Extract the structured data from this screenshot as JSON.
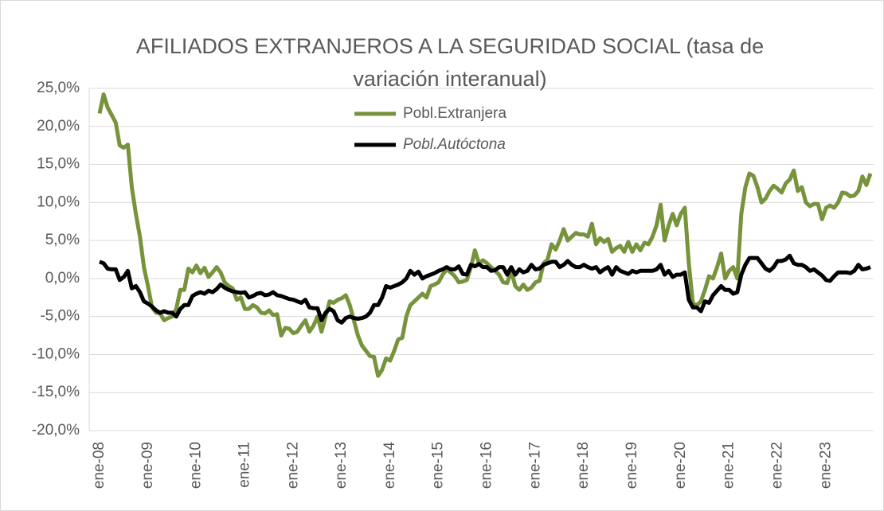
{
  "chart_data": {
    "type": "line",
    "title": "AFILIADOS EXTRANJEROS A LA SEGURIDAD SOCIAL (tasa de variación interanual)",
    "categories": [
      "ene-08",
      null,
      null,
      null,
      null,
      null,
      null,
      null,
      null,
      null,
      null,
      null,
      "ene-09",
      null,
      null,
      null,
      null,
      null,
      null,
      null,
      null,
      null,
      null,
      null,
      "ene-10",
      null,
      null,
      null,
      null,
      null,
      null,
      null,
      null,
      null,
      null,
      null,
      "ene-11",
      null,
      null,
      null,
      null,
      null,
      null,
      null,
      null,
      null,
      null,
      null,
      "ene-12",
      null,
      null,
      null,
      null,
      null,
      null,
      null,
      null,
      null,
      null,
      null,
      "ene-13",
      null,
      null,
      null,
      null,
      null,
      null,
      null,
      null,
      null,
      null,
      null,
      "ene-14",
      null,
      null,
      null,
      null,
      null,
      null,
      null,
      null,
      null,
      null,
      null,
      "ene-15",
      null,
      null,
      null,
      null,
      null,
      null,
      null,
      null,
      null,
      null,
      null,
      "ene-16",
      null,
      null,
      null,
      null,
      null,
      null,
      null,
      null,
      null,
      null,
      null,
      "ene-17",
      null,
      null,
      null,
      null,
      null,
      null,
      null,
      null,
      null,
      null,
      null,
      "ene-18",
      null,
      null,
      null,
      null,
      null,
      null,
      null,
      null,
      null,
      null,
      null,
      "ene-19",
      null,
      null,
      null,
      null,
      null,
      null,
      null,
      null,
      null,
      null,
      null,
      "ene-20",
      null,
      null,
      null,
      null,
      null,
      null,
      null,
      null,
      null,
      null,
      null,
      "ene-21",
      null,
      null,
      null,
      null,
      null,
      null,
      null,
      null,
      null,
      null,
      null,
      "ene-22",
      null,
      null,
      null,
      null,
      null,
      null,
      null,
      null,
      null,
      null,
      null,
      "ene-23",
      null,
      null,
      null,
      null,
      null,
      null,
      null,
      null,
      null,
      null,
      null
    ],
    "series": [
      {
        "name": "Pobl.Extranjera",
        "color": "#77933c",
        "values": [
          21.7,
          24.2,
          22.5,
          21.5,
          20.5,
          17.5,
          17.2,
          17.6,
          12,
          8.5,
          5.5,
          1.5,
          -1,
          -3.8,
          -4.5,
          -4.6,
          -5.5,
          -5.2,
          -5.0,
          -4,
          -1.5,
          -1.5,
          1.3,
          0.8,
          1.7,
          0.7,
          1.4,
          0.2,
          0.8,
          1.5,
          0.8,
          -0.5,
          -1,
          -1.3,
          -2.8,
          -2.5,
          -4,
          -4,
          -3.5,
          -3.8,
          -4.5,
          -4.6,
          -4.2,
          -4.8,
          -4.7,
          -7.5,
          -6.5,
          -6.6,
          -7.2,
          -7,
          -6.2,
          -5.5,
          -7,
          -6.2,
          -5,
          -7,
          -5,
          -3,
          -3.2,
          -2.8,
          -2.6,
          -2.2,
          -3.5,
          -5.5,
          -7.5,
          -8.8,
          -9.5,
          -10.2,
          -10.3,
          -12.8,
          -12,
          -10.5,
          -10.8,
          -9.5,
          -8,
          -7.8,
          -5,
          -3.5,
          -3,
          -2.5,
          -2,
          -2.5,
          -1,
          -0.8,
          -0.5,
          0.5,
          1.2,
          0.8,
          0.3,
          -0.5,
          -0.4,
          -0.2,
          1.5,
          3.7,
          2,
          2.4,
          2,
          1.5,
          1,
          0.5,
          -0.5,
          -0.6,
          1,
          -1,
          -1.5,
          -0.8,
          -1.5,
          -1.2,
          -0.5,
          -0.3,
          2,
          2.5,
          4.5,
          3.8,
          5,
          6.5,
          5,
          5.5,
          6,
          5.8,
          5.8,
          5.5,
          7.2,
          4.5,
          5.3,
          4.8,
          5.2,
          3.5,
          4,
          4.3,
          3.5,
          4.8,
          3.5,
          4.5,
          3.7,
          4.7,
          4.5,
          5.5,
          7,
          9.7,
          5,
          7,
          8.5,
          7,
          8.5,
          9.3,
          2,
          -3.3,
          -3.5,
          -3,
          -1.5,
          0.3,
          0,
          1.5,
          3.3,
          0,
          1,
          1.5,
          0,
          8.5,
          12,
          13.8,
          13.5,
          12,
          10,
          10.5,
          11.5,
          12.2,
          11.8,
          11.3,
          12.5,
          13,
          14.2,
          11.5,
          12,
          10,
          9.5,
          9.8,
          9.8,
          7.8,
          9.3,
          9.6,
          9.3,
          10,
          11.3,
          11.2,
          10.8,
          10.9,
          11.5,
          13.4,
          12.3,
          13.8
        ]
      },
      {
        "name": "Pobl.Autóctona",
        "color": "#000000",
        "values": [
          2.2,
          2,
          1.3,
          1.2,
          1.2,
          -0.2,
          0.2,
          1,
          -1.3,
          -1,
          -1.8,
          -3,
          -3.3,
          -3.7,
          -4.2,
          -4.5,
          -4.3,
          -4.5,
          -4.5,
          -5,
          -4,
          -3.5,
          -3.5,
          -2.3,
          -2,
          -1.8,
          -2,
          -1.6,
          -1.8,
          -1.4,
          -0.8,
          -1.2,
          -1.5,
          -1.7,
          -1.8,
          -1.9,
          -1.8,
          -2.5,
          -2.3,
          -2,
          -1.9,
          -2.2,
          -2.1,
          -1.8,
          -2.2,
          -2.3,
          -2.5,
          -2.7,
          -2.8,
          -3,
          -3.2,
          -2.8,
          -3.8,
          -3.9,
          -3.9,
          -5.5,
          -4.5,
          -4,
          -4.3,
          -5.5,
          -5.8,
          -5.2,
          -5,
          -5.2,
          -5.3,
          -5.2,
          -5,
          -4.5,
          -3.5,
          -3.5,
          -2.5,
          -1,
          -1.2,
          -1,
          -0.8,
          -0.5,
          0,
          1,
          0.5,
          0.9,
          0,
          0.3,
          0.5,
          0.7,
          1,
          1.2,
          1.5,
          1.2,
          1.2,
          1.6,
          0.6,
          0.5,
          1.8,
          1.6,
          1.9,
          1.5,
          1.5,
          1,
          1.1,
          1.5,
          1.5,
          0.5,
          1.5,
          0.5,
          1.2,
          0.8,
          1,
          1.8,
          1.2,
          1.3,
          1.8,
          2,
          2.2,
          2.2,
          1.5,
          1.8,
          2.3,
          1.8,
          1.5,
          1.5,
          1.8,
          1.5,
          1.3,
          1.5,
          0.8,
          1.2,
          1.5,
          0.5,
          1.5,
          1,
          0.8,
          0.6,
          1,
          0.8,
          1,
          1,
          1,
          1,
          1.2,
          1.8,
          0.5,
          1,
          0.2,
          0.5,
          0.5,
          0.8,
          -2.8,
          -3.8,
          -3.8,
          -4.3,
          -3,
          -3.2,
          -2.2,
          -1.6,
          -1,
          -1.5,
          -1.5,
          -2,
          -1.8,
          0.5,
          1.8,
          2.7,
          2.7,
          2.7,
          2,
          1.3,
          1,
          1.5,
          2.3,
          2.3,
          2.5,
          3,
          2,
          1.8,
          1.8,
          1.5,
          1,
          1.2,
          0.8,
          0.4,
          -0.2,
          -0.3,
          0.3,
          0.8,
          0.8,
          0.8,
          0.7,
          1,
          1.8,
          1.2,
          1.3,
          1.5
        ]
      }
    ],
    "ylim": [
      -20,
      25
    ],
    "yticks": [
      {
        "value": -20,
        "label": "-20,0%"
      },
      {
        "value": -15,
        "label": "-15,0%"
      },
      {
        "value": -10,
        "label": "-10,0%"
      },
      {
        "value": -5,
        "label": "-5,0%"
      },
      {
        "value": 0,
        "label": "0,0%"
      },
      {
        "value": 5,
        "label": "5,0%"
      },
      {
        "value": 10,
        "label": "10,0%"
      },
      {
        "value": 15,
        "label": "15,0%"
      },
      {
        "value": 20,
        "label": "20,0%"
      },
      {
        "value": 25,
        "label": "25,0%"
      }
    ],
    "grid": true
  }
}
